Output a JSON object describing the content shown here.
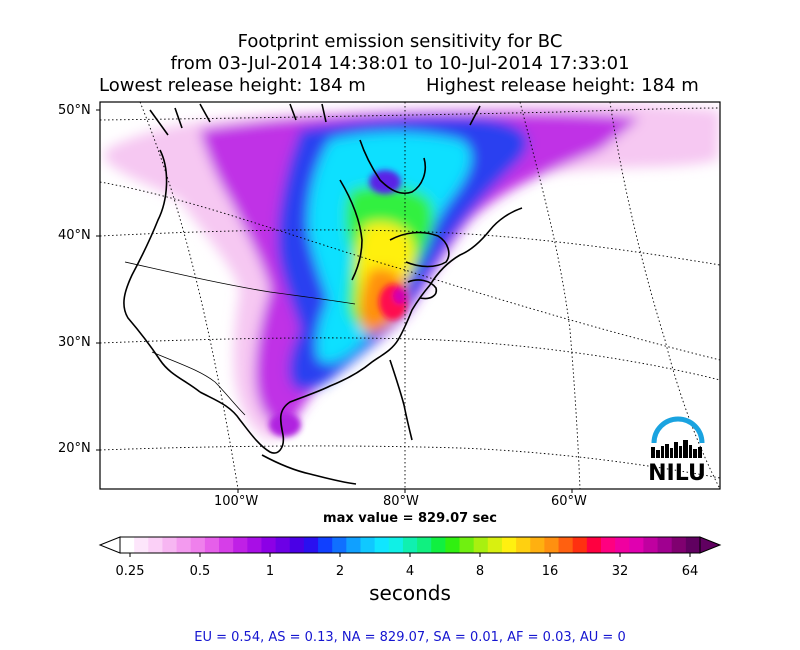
{
  "title": {
    "line1": "Footprint emission sensitivity for BC",
    "line2": "from 03-Jul-2014 14:38:01 to 10-Jul-2014 17:33:01",
    "lowest": "Lowest release height: 184 m",
    "highest": "Highest release height: 184 m"
  },
  "map": {
    "lat_labels": [
      "50°N",
      "40°N",
      "30°N",
      "20°N"
    ],
    "lon_labels": [
      "100°W",
      "80°W",
      "60°W"
    ],
    "max_value_text": "max value = 829.07 sec"
  },
  "logo": {
    "text": "NILU",
    "arc_color": "#1aa3e0"
  },
  "colorbar": {
    "ticks": [
      "0.25",
      "0.5",
      "1",
      "2",
      "4",
      "8",
      "16",
      "32",
      "64"
    ],
    "label": "seconds",
    "colors": [
      "#ffffff",
      "#fde6fb",
      "#fbd0f7",
      "#f7b6f2",
      "#f39aef",
      "#ef80ec",
      "#e65fea",
      "#d63ee8",
      "#c020e6",
      "#a80ee6",
      "#8c00e6",
      "#6d00e6",
      "#4a00e6",
      "#2a10f0",
      "#1040ff",
      "#1070ff",
      "#10a0ff",
      "#10c8ff",
      "#10e6ff",
      "#10f0e6",
      "#10f0b0",
      "#10f080",
      "#10f040",
      "#30f010",
      "#70f010",
      "#a8f010",
      "#d8f010",
      "#fff010",
      "#ffd010",
      "#ffb010",
      "#ff9010",
      "#ff6010",
      "#ff3010",
      "#ff0040",
      "#ff0080",
      "#f000a0",
      "#e000b0",
      "#c000a0",
      "#a00090",
      "#800070",
      "#600060"
    ]
  },
  "stats": "EU = 0.54,  AS = 0.13,  NA = 829.07,  SA = 0.01,  AF = 0.03,  AU = 0"
}
